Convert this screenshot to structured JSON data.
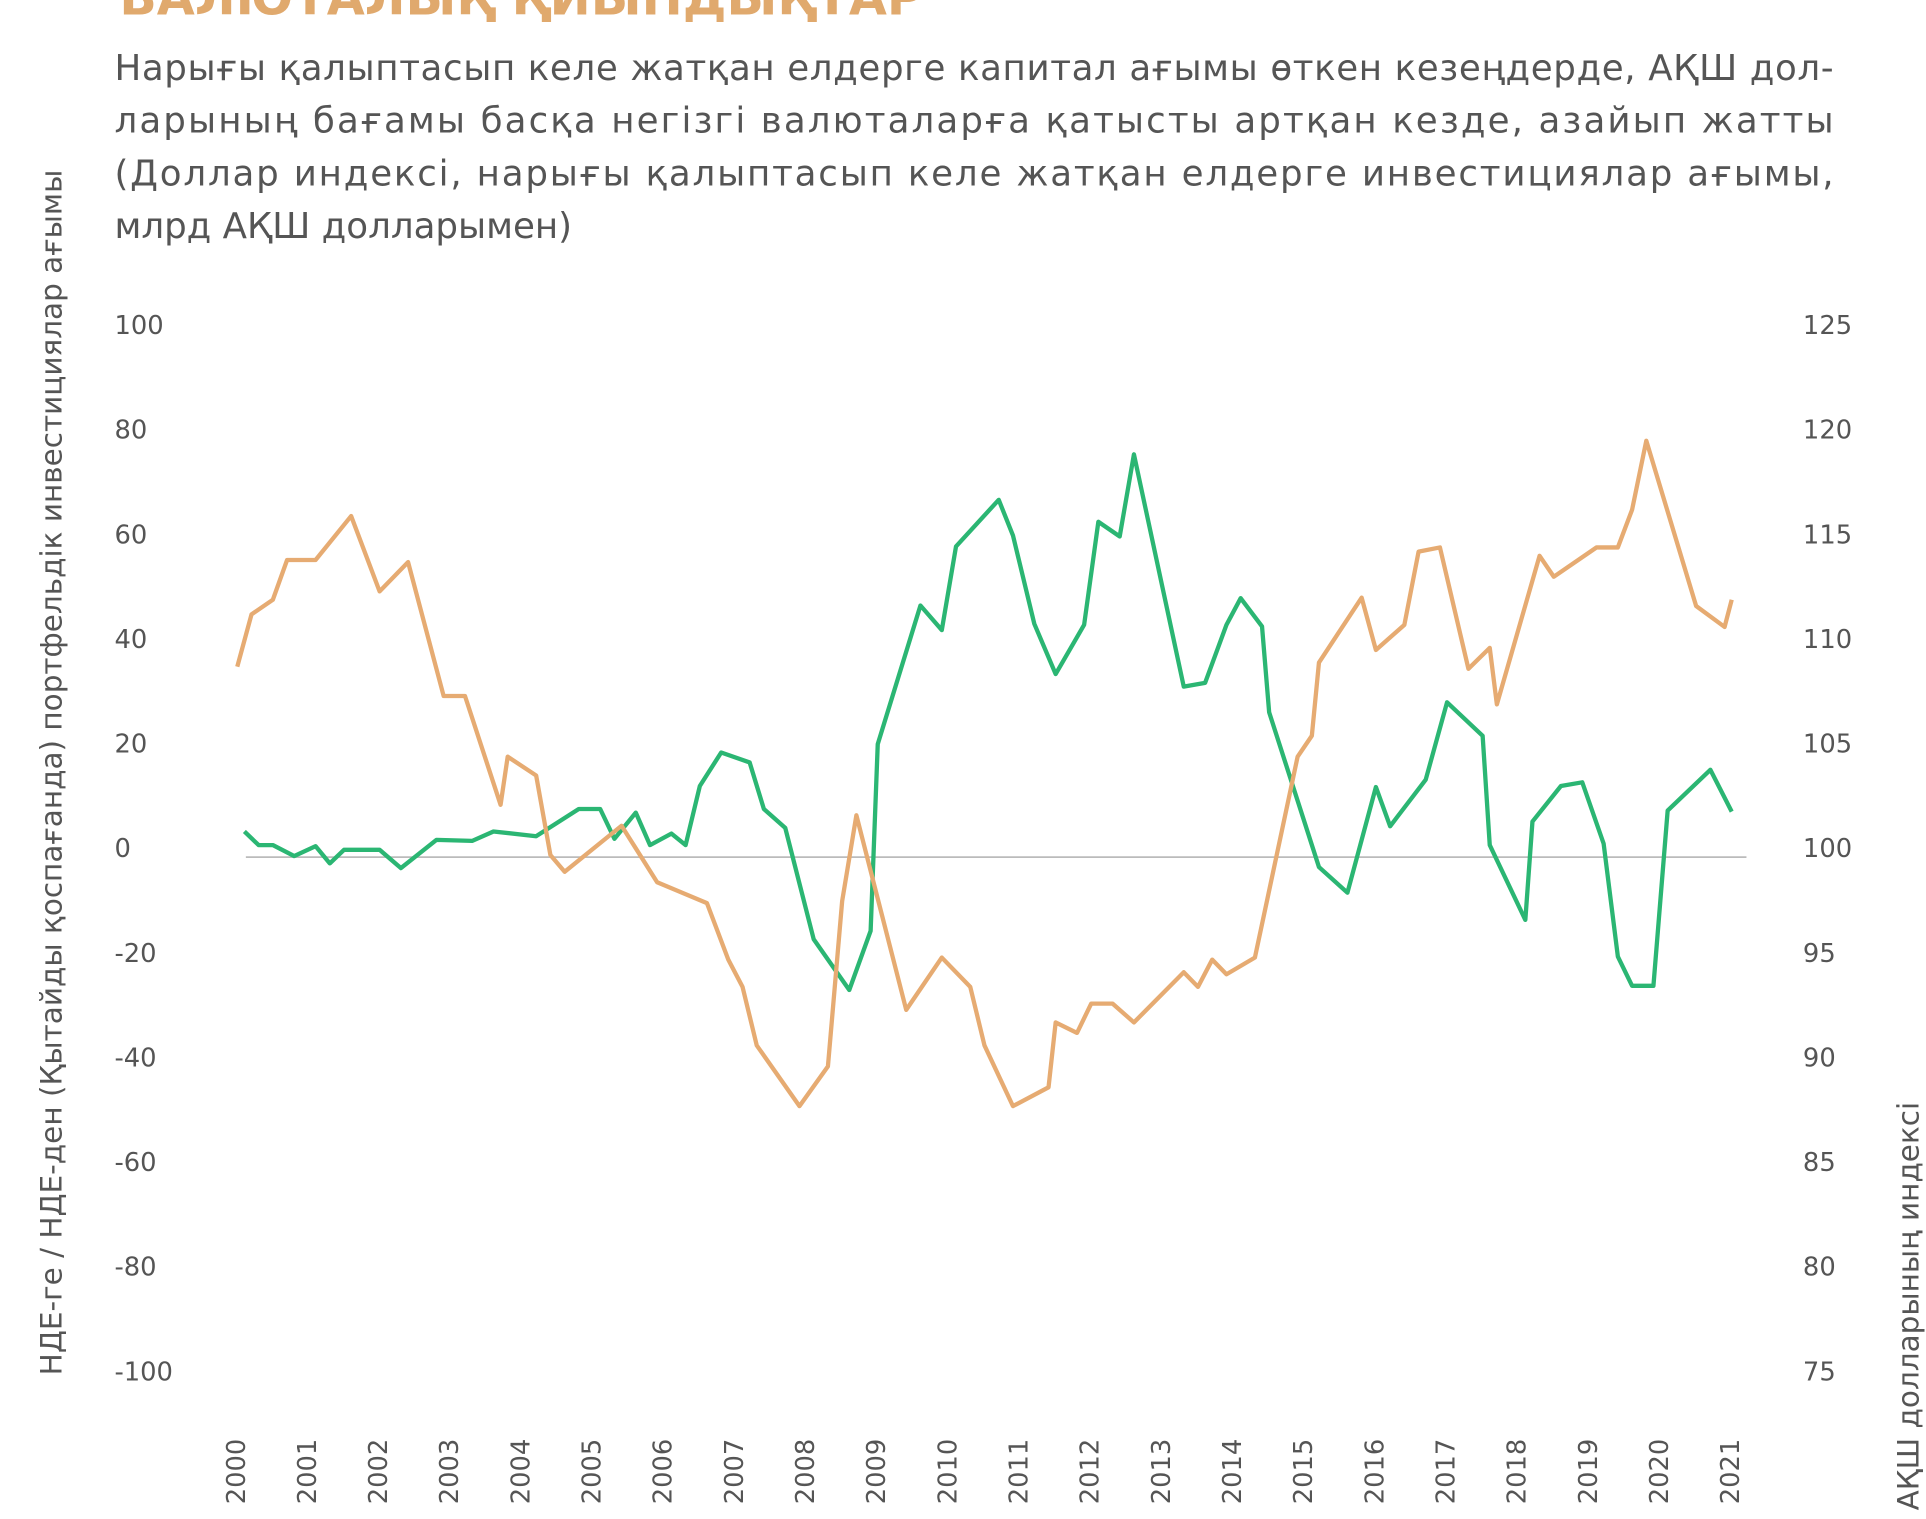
{
  "chart_data": {
    "type": "line",
    "title": "ВАЛЮТАЛЫҚ ҚИЫНДЫҚТАР",
    "subtitle": [
      "Нарығы қалыптасып келе жатқан елдерге капитал ағымы өткен кезеңдерде, АҚШ дол-",
      "ларының бағамы басқа негізгі валюталарға қатысты артқан кезде, азайып жатты",
      "(Доллар индексі, нарығы қалыптасып келе жатқан елдерге инвестициялар ағымы,",
      "млрд АҚШ долларымен)"
    ],
    "y_label": "НДЕ-ге / НДЕ-ден (Қытайды қоспағанда) портфельдік инвестициялар ағымы",
    "y2_label": "АҚШ долларының индексі",
    "xlim": [
      2000,
      2021
    ],
    "xticks": [
      2000,
      2001,
      2002,
      2003,
      2004,
      2005,
      2006,
      2007,
      2008,
      2009,
      2010,
      2011,
      2012,
      2013,
      2014,
      2015,
      2016,
      2017,
      2018,
      2019,
      2020,
      2021
    ],
    "ylim": [
      -100,
      100
    ],
    "yticks": [
      100,
      80,
      60,
      40,
      20,
      0,
      -20,
      -40,
      -60,
      -80,
      -100
    ],
    "y2lim": [
      75,
      125
    ],
    "y2ticks": [
      125,
      120,
      115,
      110,
      105,
      100,
      95,
      90,
      85,
      80,
      75
    ],
    "zero_line": true,
    "series": [
      {
        "name": "flows",
        "color": "#2bb673",
        "x": [
          2000.1,
          2000.3,
          2000.5,
          2000.8,
          2001.1,
          2001.3,
          2001.5,
          2002.0,
          2002.3,
          2002.8,
          2003.3,
          2003.6,
          2004.2,
          2004.8,
          2005.1,
          2005.3,
          2005.6,
          2005.8,
          2006.1,
          2006.3,
          2006.5,
          2006.8,
          2007.2,
          2007.4,
          2007.7,
          2008.1,
          2008.6,
          2008.9,
          2009.0,
          2009.6,
          2009.9,
          2010.1,
          2010.7,
          2010.9,
          2011.2,
          2011.5,
          2011.9,
          2012.1,
          2012.4,
          2012.6,
          2013.3,
          2013.6,
          2013.9,
          2014.1,
          2014.4,
          2014.5,
          2015.2,
          2015.6,
          2016.0,
          2016.2,
          2016.7,
          2017.0,
          2017.5,
          2017.6,
          2018.1,
          2018.2,
          2018.6,
          2018.9,
          2019.2,
          2019.4,
          2019.6,
          2019.9,
          2020.1,
          2020.7,
          2021.0
        ],
        "values": [
          4.9,
          2.3,
          2.3,
          0.2,
          2.1,
          -1.2,
          1.4,
          1.4,
          -2.1,
          3.3,
          3.1,
          4.9,
          4.0,
          9.2,
          9.2,
          3.5,
          8.5,
          2.3,
          4.5,
          2.3,
          13.6,
          20.0,
          18.1,
          9.2,
          5.6,
          -15.7,
          -25.4,
          -14.1,
          21.6,
          48.1,
          43.4,
          59.4,
          68.3,
          61.5,
          44.6,
          35.0,
          44.4,
          64.1,
          61.3,
          77.0,
          32.6,
          33.3,
          44.4,
          49.5,
          44.1,
          27.7,
          -1.9,
          -6.8,
          13.4,
          5.9,
          14.8,
          29.6,
          23.2,
          2.3,
          -12.0,
          6.8,
          13.6,
          14.3,
          2.6,
          -19.0,
          -24.6,
          -24.6,
          8.9,
          16.7,
          8.7
        ]
      },
      {
        "name": "dollar_index",
        "color": "#e6ab72",
        "axis": "y2",
        "x": [
          2000.0,
          2000.2,
          2000.5,
          2000.7,
          2001.1,
          2001.6,
          2002.0,
          2002.4,
          2002.9,
          2003.2,
          2003.7,
          2003.8,
          2004.2,
          2004.4,
          2004.6,
          2005.4,
          2005.9,
          2006.6,
          2006.9,
          2007.1,
          2007.3,
          2007.9,
          2008.3,
          2008.5,
          2008.7,
          2009.4,
          2009.9,
          2010.3,
          2010.5,
          2010.9,
          2011.4,
          2011.5,
          2011.8,
          2012.0,
          2012.3,
          2012.6,
          2013.3,
          2013.5,
          2013.7,
          2013.9,
          2014.3,
          2014.9,
          2015.1,
          2015.2,
          2015.8,
          2016.0,
          2016.4,
          2016.6,
          2016.9,
          2017.3,
          2017.6,
          2017.7,
          2018.3,
          2018.5,
          2019.1,
          2019.4,
          2019.6,
          2019.8,
          2020.5,
          2020.9,
          2021.0
        ],
        "values": [
          109.1,
          111.6,
          112.3,
          114.2,
          114.2,
          116.3,
          112.7,
          114.1,
          107.7,
          107.7,
          102.5,
          104.8,
          103.9,
          100.1,
          99.3,
          101.5,
          98.8,
          97.8,
          95.1,
          93.8,
          91.0,
          88.1,
          90.0,
          97.9,
          102.0,
          92.7,
          95.2,
          93.8,
          91.0,
          88.1,
          89.0,
          92.1,
          91.6,
          93.0,
          93.0,
          92.1,
          94.5,
          93.8,
          95.1,
          94.4,
          95.2,
          104.8,
          105.8,
          109.3,
          112.4,
          109.9,
          111.1,
          114.6,
          114.8,
          109.0,
          110.0,
          107.3,
          114.4,
          113.4,
          114.8,
          114.8,
          116.6,
          119.9,
          112.0,
          111.0,
          112.3
        ]
      }
    ]
  }
}
